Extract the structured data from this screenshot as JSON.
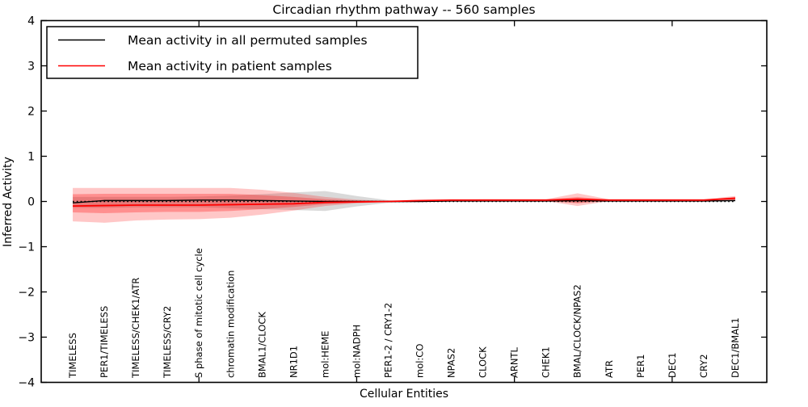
{
  "title": "Circadian rhythm pathway -- 560 samples",
  "legend": {
    "items": [
      {
        "label": "Mean activity in all permuted samples",
        "color": "#000000"
      },
      {
        "label": "Mean activity in patient samples",
        "color": "#ff0000"
      }
    ]
  },
  "chart_data": {
    "type": "line",
    "title": "Circadian rhythm pathway -- 560 samples",
    "xlabel": "Cellular Entities",
    "ylabel": "Inferred Activity",
    "ylim": [
      -4,
      4
    ],
    "yticks": [
      4,
      3,
      2,
      1,
      0,
      -1,
      -2,
      -3,
      -4
    ],
    "xtick_positions": [
      5,
      10,
      15,
      20
    ],
    "grid": false,
    "legend_position": "upper left",
    "zero_line": 0,
    "categories": [
      "TIMELESS",
      "PER1/TIMELESS",
      "TIMELESS/CHEK1/ATR",
      "TIMELESS/CRY2",
      "S phase of mitotic cell cycle",
      "chromatin modification",
      "BMAL1/CLOCK",
      "NR1D1",
      "mol:HEME",
      "mol:NADPH",
      "PER1-2 / CRY1-2",
      "mol:CO",
      "NPAS2",
      "CLOCK",
      "ARNTL",
      "CHEK1",
      "BMAL/CLOCK/NPAS2",
      "ATR",
      "PER1",
      "DEC1",
      "CRY2",
      "DEC1/BMAL1"
    ],
    "series": [
      {
        "name": "Mean activity in all permuted samples",
        "color": "#000000",
        "width": 1.4,
        "values": [
          -0.03,
          0.02,
          0.02,
          0.02,
          0.03,
          0.03,
          0.02,
          0.01,
          0.0,
          0.0,
          0.0,
          0.0,
          0.01,
          0.01,
          0.01,
          0.01,
          0.02,
          0.01,
          0.01,
          0.01,
          0.01,
          0.02
        ]
      },
      {
        "name": "Mean activity in patient samples",
        "color": "#ff0000",
        "width": 1.8,
        "values": [
          -0.1,
          -0.09,
          -0.08,
          -0.08,
          -0.08,
          -0.07,
          -0.06,
          -0.05,
          -0.02,
          -0.01,
          0.0,
          0.02,
          0.03,
          0.03,
          0.03,
          0.03,
          0.05,
          0.03,
          0.03,
          0.03,
          0.03,
          0.07
        ]
      }
    ],
    "bands": [
      {
        "name": "permuted-std-band",
        "color": "#aaaaaa",
        "opacity": 0.45,
        "upper": [
          0.1,
          0.1,
          0.1,
          0.1,
          0.11,
          0.13,
          0.16,
          0.2,
          0.23,
          0.12,
          0.03,
          0.01,
          0.02,
          0.02,
          0.02,
          0.02,
          0.04,
          0.02,
          0.01,
          0.01,
          0.02,
          0.04
        ],
        "lower": [
          -0.14,
          -0.14,
          -0.13,
          -0.13,
          -0.13,
          -0.15,
          -0.17,
          -0.19,
          -0.21,
          -0.11,
          -0.03,
          -0.01,
          0.0,
          0.0,
          0.0,
          0.0,
          -0.02,
          0.0,
          0.0,
          0.0,
          0.0,
          0.0
        ]
      },
      {
        "name": "patient-outer-band",
        "color": "#ff0000",
        "opacity": 0.22,
        "upper": [
          0.3,
          0.3,
          0.3,
          0.3,
          0.3,
          0.3,
          0.26,
          0.19,
          0.1,
          0.04,
          0.01,
          0.03,
          0.04,
          0.05,
          0.05,
          0.05,
          0.18,
          0.05,
          0.05,
          0.05,
          0.05,
          0.12
        ],
        "lower": [
          -0.44,
          -0.47,
          -0.42,
          -0.4,
          -0.39,
          -0.36,
          -0.29,
          -0.2,
          -0.1,
          -0.04,
          -0.01,
          0.0,
          0.01,
          0.01,
          0.01,
          0.01,
          -0.1,
          0.01,
          0.01,
          0.01,
          0.01,
          0.02
        ]
      },
      {
        "name": "patient-inner-band",
        "color": "#ff0000",
        "opacity": 0.28,
        "upper": [
          0.16,
          0.17,
          0.17,
          0.17,
          0.17,
          0.17,
          0.14,
          0.1,
          0.05,
          0.02,
          0.01,
          0.02,
          0.04,
          0.04,
          0.04,
          0.04,
          0.1,
          0.04,
          0.04,
          0.04,
          0.04,
          0.1
        ],
        "lower": [
          -0.24,
          -0.26,
          -0.24,
          -0.23,
          -0.23,
          -0.21,
          -0.17,
          -0.12,
          -0.06,
          -0.02,
          -0.01,
          0.01,
          0.02,
          0.02,
          0.02,
          0.02,
          -0.04,
          0.02,
          0.02,
          0.02,
          0.02,
          0.04
        ]
      }
    ]
  }
}
